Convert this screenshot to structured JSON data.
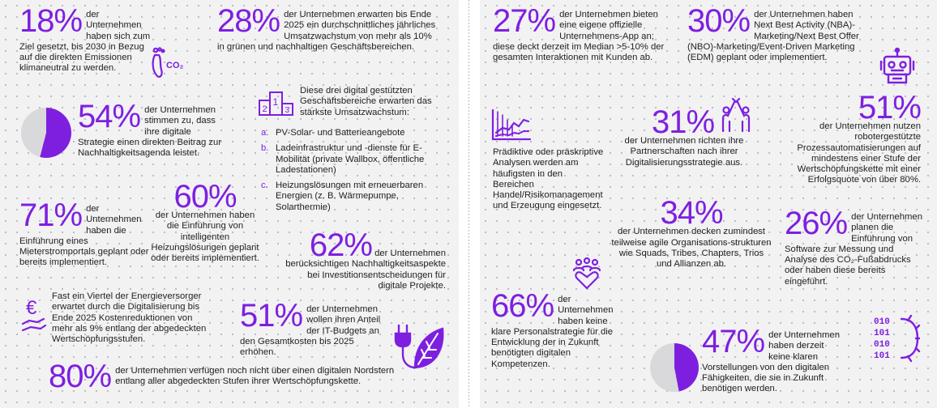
{
  "colors": {
    "accent": "#7e1fe0",
    "pie_rest": "#d9d9dc",
    "text": "#222222"
  },
  "left": {
    "s18": {
      "value": "18%",
      "text": "der Unternehmen haben sich zum Ziel gesetzt, bis 2030 in Bezug auf die direkten Emissionen klimaneutral zu werden.",
      "icon": "footprint-co2-icon"
    },
    "s28": {
      "value": "28%",
      "text": "der Unternehmen erwarten bis Ende 2025 ein durchschnittliches jährliches Umsatzwachstum von mehr als 10% in grünen und nachhaltigen Geschäftsbereichen."
    },
    "s54": {
      "value": "54%",
      "text": "der Unternehmen stimmen zu, dass ihre digitale Strategie einen direkten Beitrag zur Nachhaltigkeitsagenda leistet.",
      "pie_fraction": 0.54
    },
    "podium": {
      "icon": "podium-icon",
      "podium_nums": [
        "1",
        "2",
        "3"
      ],
      "intro": "Diese drei digital gestützten Geschäftsbereiche erwarten das stärkste Umsatzwachstum:",
      "items": [
        {
          "marker": "a.",
          "text": "PV-Solar- und Batterieangebote"
        },
        {
          "marker": "b.",
          "text": "Ladeinfrastruktur und -dienste für E-Mobilität (private Wallbox, öffentliche Ladestationen)"
        },
        {
          "marker": "c.",
          "text": "Heizungslösungen mit erneuerbaren Energien (z. B. Wärmepumpe, Solarthermie)"
        }
      ]
    },
    "s71": {
      "value": "71%",
      "text": "der Unternehmen haben die Einführung eines Mieterstromportals geplant oder bereits implementiert."
    },
    "s60": {
      "value": "60%",
      "text": "der Unternehmen haben die Einführung von intelligenten Heizungslösungen geplant oder bereits implementiert."
    },
    "s62": {
      "value": "62%",
      "lead": "der Unternehmen",
      "text": "berücksichtigen Nachhaltigkeitsaspekte bei Investitionsentscheidungen für digitale Projekte."
    },
    "quarter": {
      "text": "Fast ein Viertel der Energieversorger erwartet durch die Digitalisierung bis Ende 2025 Kostenreduktionen von mehr als 9% entlang der abgedeckten Wertschöpfungsstufen.",
      "icon": "euro-hand-icon",
      "euro_glyph": "€"
    },
    "s51": {
      "value": "51%",
      "text": "der Unternehmen wollen ihren Anteil der IT-Budgets an den Gesamtkosten bis 2025 erhöhen.",
      "icon": "plug-leaf-icon"
    },
    "s80": {
      "value": "80%",
      "text": "der Unternehmen verfügen noch nicht über einen digitalen Nordstern entlang aller abgedeckten Stufen ihrer Wertschöpfungskette."
    }
  },
  "right": {
    "s27": {
      "value": "27%",
      "text": "der Unternehmen bieten eine eigene offizielle Unternehmens-App an; diese deckt derzeit im Median >5-10% der gesamten Interaktionen mit Kunden ab."
    },
    "s30": {
      "value": "30%",
      "text": "der Unternehmen haben Next Best Activity (NBA)-Marketing/Next Best Offer (NBO)-Marketing/Event-Driven Marketing (EDM) geplant oder implementiert.",
      "icon": "robot-icon"
    },
    "s51b": {
      "value": "51%",
      "text": "der Unternehmen nutzen robotergestützte Prozessautomatisierungen auf mindestens einer Stufe der Wertschöpfungskette mit einer Erfolgsquote von über 80%."
    },
    "predictive": {
      "text": "Prädiktive oder präskriptive Analysen werden am häufigsten in den Bereichen Handel/Risikomanagement und Erzeugung eingesetzt.",
      "icon": "analytics-chart-icon"
    },
    "s31": {
      "value": "31%",
      "text": "der Unternehmen richten ihre Partnerschaften nach ihrer Digitalisierungsstrategie aus.",
      "icon": "high-five-icon"
    },
    "s34": {
      "value": "34%",
      "text": "der Unternehmen decken zumindest teilweise agile Organisations-strukturen wie Squads, Tribes, Chapters, Trios und Allianzen ab."
    },
    "s26": {
      "value": "26%",
      "text": "der Unternehmen planen die Einführung von Software zur Messung und Analyse des CO₂-Fußabdrucks oder haben diese bereits eingeführt."
    },
    "s66": {
      "value": "66%",
      "text": "der Unternehmen haben keine klare Personalstrategie für die Entwicklung der in Zukunft benötigten digitalen Kompetenzen.",
      "icon": "team-heart-icon"
    },
    "s47": {
      "value": "47%",
      "text": "der Unternehmen haben derzeit keine klaren Vorstellungen von den digitalen Fähigkeiten, die sie in Zukunft benötigen werden.",
      "pie_fraction": 0.47
    },
    "binary_gear": {
      "icon": "binary-gear-icon",
      "rows": [
        "010",
        "101",
        "010",
        "101"
      ]
    }
  }
}
